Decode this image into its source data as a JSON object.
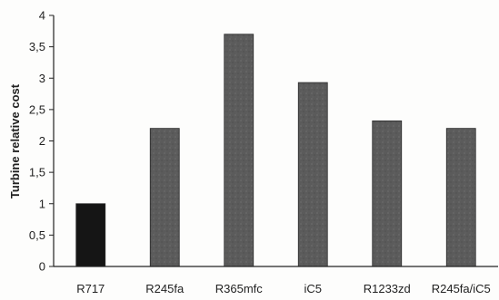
{
  "chart_data": {
    "type": "bar",
    "title": "",
    "xlabel": "",
    "ylabel": "Turbine relative cost",
    "categories": [
      "R717",
      "R245fa",
      "R365mfc",
      "iC5",
      "R1233zd",
      "R245fa/iC5"
    ],
    "values": [
      1.0,
      2.2,
      3.7,
      2.93,
      2.32,
      2.2
    ],
    "ylim": [
      0,
      4
    ],
    "yticks": [
      "0",
      "0,5",
      "1",
      "1,5",
      "2",
      "2,5",
      "3",
      "3,5",
      "4"
    ],
    "grid": false,
    "legend": "none",
    "colors": {
      "first_bar": "#151515",
      "other_bars": "#5b5b5b",
      "axis": "#222222"
    }
  }
}
